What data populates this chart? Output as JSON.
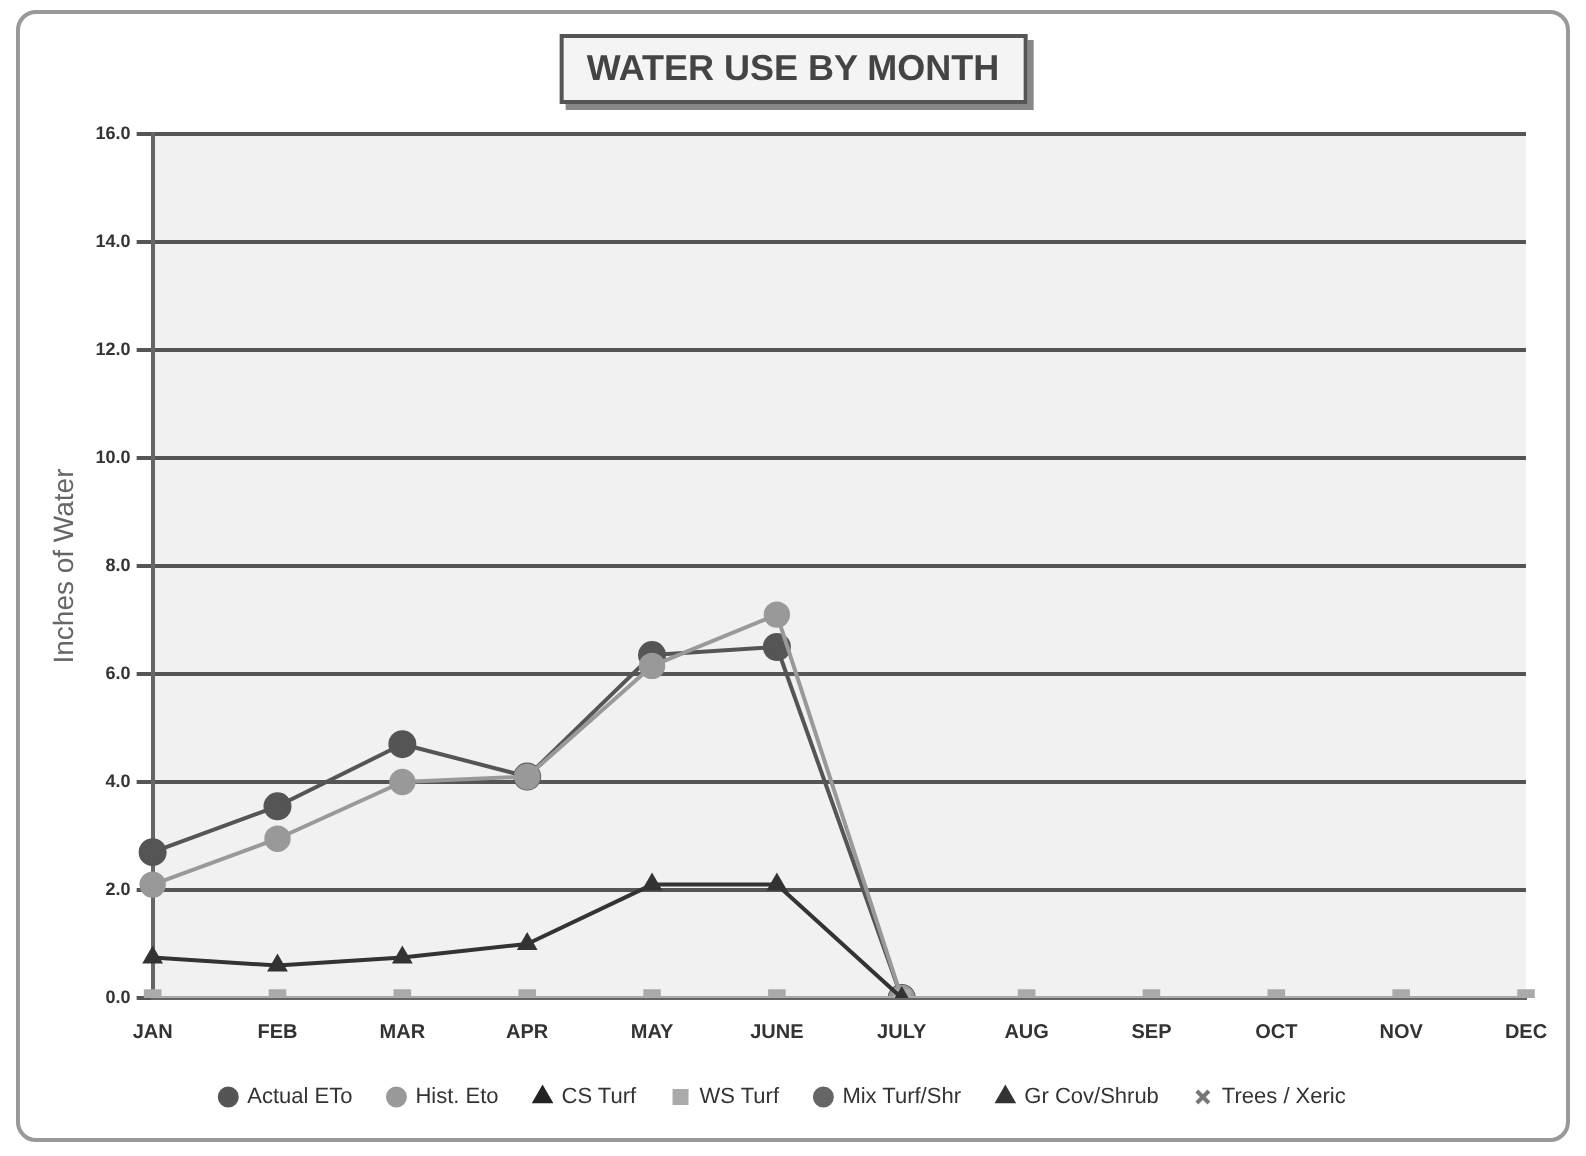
{
  "chart_data": {
    "type": "line",
    "title": "WATER USE BY MONTH",
    "ylabel": "Inches of Water",
    "categories": [
      "JAN",
      "FEB",
      "MAR",
      "APR",
      "MAY",
      "JUNE",
      "JULY",
      "AUG",
      "SEP",
      "OCT",
      "NOV",
      "DEC"
    ],
    "ylim": [
      0,
      16
    ],
    "yticks": [
      {
        "value": 0,
        "label": "0.0"
      },
      {
        "value": 2,
        "label": "2.0"
      },
      {
        "value": 4,
        "label": "4.0"
      },
      {
        "value": 6,
        "label": "6.0"
      },
      {
        "value": 8,
        "label": "8.0"
      },
      {
        "value": 10,
        "label": "10.0"
      },
      {
        "value": 12,
        "label": "12.0"
      },
      {
        "value": 14,
        "label": "14.0"
      },
      {
        "value": 16,
        "label": "16.0"
      }
    ],
    "grid": "y",
    "legend": "bottom",
    "series": [
      {
        "name": "Actual ETo",
        "color": "#555555",
        "marker": "circle",
        "values": [
          2.7,
          3.55,
          4.7,
          4.1,
          6.35,
          6.5,
          0,
          null,
          null,
          null,
          null,
          null
        ]
      },
      {
        "name": "Hist. Eto",
        "color": "#999999",
        "marker": "circle",
        "values": [
          2.1,
          2.95,
          4.0,
          4.1,
          6.15,
          7.1,
          0,
          null,
          null,
          null,
          null,
          null
        ]
      },
      {
        "name": "CS Turf",
        "color": "#222222",
        "marker": "triangle",
        "values": [
          null,
          null,
          null,
          null,
          null,
          null,
          null,
          null,
          null,
          null,
          null,
          null
        ]
      },
      {
        "name": "WS Turf",
        "color": "#aaaaaa",
        "marker": "square",
        "values": [
          0,
          0,
          0,
          0,
          0,
          0,
          0,
          0,
          0,
          0,
          0,
          0
        ]
      },
      {
        "name": "Mix Turf/Shr",
        "color": "#666666",
        "marker": "circle",
        "values": [
          null,
          null,
          null,
          null,
          null,
          null,
          null,
          null,
          null,
          null,
          null,
          null
        ]
      },
      {
        "name": "Gr Cov/Shrub",
        "color": "#333333",
        "marker": "triangle",
        "values": [
          0.75,
          0.6,
          0.75,
          1.0,
          2.1,
          2.1,
          0,
          null,
          null,
          null,
          null,
          null
        ]
      },
      {
        "name": "Trees / Xeric",
        "color": "#777777",
        "marker": "cross",
        "values": [
          null,
          null,
          null,
          null,
          null,
          null,
          null,
          null,
          null,
          null,
          null,
          null
        ]
      }
    ]
  }
}
